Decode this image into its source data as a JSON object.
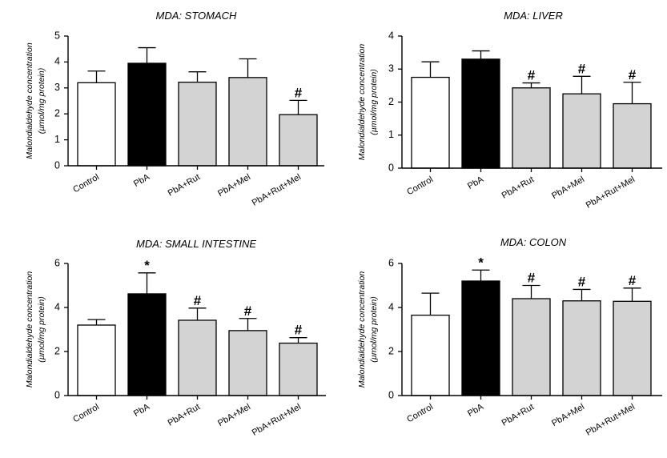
{
  "chart_data": [
    {
      "type": "bar",
      "title": "MDA: STOMACH",
      "ylabel": [
        "Malondialdehyde concentration",
        "(µmol/mg protein)"
      ],
      "categories": [
        "Control",
        "PbA",
        "PbA+Rut",
        "PbA+Mel",
        "PbA+Rut+Mel"
      ],
      "values": [
        3.2,
        3.95,
        3.22,
        3.4,
        1.97
      ],
      "errors": [
        0.45,
        0.6,
        0.4,
        0.72,
        0.55
      ],
      "fills": [
        "#ffffff",
        "#000000",
        "#d3d3d3",
        "#d3d3d3",
        "#d3d3d3"
      ],
      "markers": [
        "",
        "",
        "",
        "",
        "#"
      ],
      "ylim": [
        0,
        5
      ],
      "yticks": [
        "0",
        "1",
        "2",
        "3",
        "4",
        "5"
      ]
    },
    {
      "type": "bar",
      "title": "MDA: LIVER",
      "ylabel": [
        "Malondialdehyde concentration",
        "(µmol/mg protein)"
      ],
      "categories": [
        "Control",
        "PbA",
        "PbA+Rut",
        "PbA+Mel",
        "PbA+Rut+Mel"
      ],
      "values": [
        2.75,
        3.3,
        2.43,
        2.25,
        1.95
      ],
      "errors": [
        0.47,
        0.25,
        0.15,
        0.53,
        0.65
      ],
      "fills": [
        "#ffffff",
        "#000000",
        "#d3d3d3",
        "#d3d3d3",
        "#d3d3d3"
      ],
      "markers": [
        "",
        "",
        "#",
        "#",
        "#"
      ],
      "ylim": [
        0,
        4
      ],
      "yticks": [
        "0",
        "1",
        "2",
        "3",
        "4"
      ]
    },
    {
      "type": "bar",
      "title": "MDA: SMALL INTESTINE",
      "ylabel": [
        "Malondialdehyde concentration",
        "(µmol/mg protein)"
      ],
      "categories": [
        "Control",
        "PbA",
        "PbA+Rut",
        "PbA+Mel",
        "PbA+Rut+Mel"
      ],
      "values": [
        3.2,
        4.62,
        3.42,
        2.95,
        2.38
      ],
      "errors": [
        0.25,
        0.95,
        0.55,
        0.55,
        0.25
      ],
      "fills": [
        "#ffffff",
        "#000000",
        "#d3d3d3",
        "#d3d3d3",
        "#d3d3d3"
      ],
      "markers": [
        "",
        "*",
        "#",
        "#",
        "#"
      ],
      "ylim": [
        0,
        6
      ],
      "yticks": [
        "0",
        "2",
        "4",
        "6"
      ]
    },
    {
      "type": "bar",
      "title": "MDA: COLON",
      "ylabel": [
        "Malondialdehyde concentration",
        "(µmol/mg protein)"
      ],
      "categories": [
        "Control",
        "PbA",
        "PbA+Rut",
        "PbA+Mel",
        "PbA+Rut+Mel"
      ],
      "values": [
        3.65,
        5.2,
        4.4,
        4.3,
        4.28
      ],
      "errors": [
        1.0,
        0.5,
        0.6,
        0.52,
        0.6
      ],
      "fills": [
        "#ffffff",
        "#000000",
        "#d3d3d3",
        "#d3d3d3",
        "#d3d3d3"
      ],
      "markers": [
        "",
        "*",
        "#",
        "#",
        "#"
      ],
      "ylim": [
        0,
        6
      ],
      "yticks": [
        "0",
        "2",
        "4",
        "6"
      ]
    }
  ]
}
